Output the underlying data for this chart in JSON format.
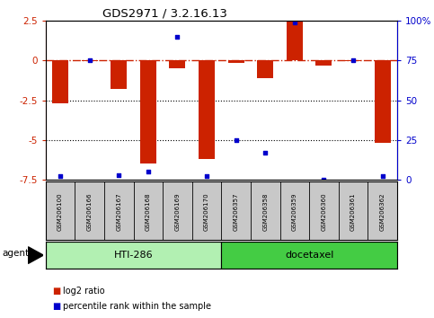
{
  "title": "GDS2971 / 3.2.16.13",
  "samples": [
    "GSM206100",
    "GSM206166",
    "GSM206167",
    "GSM206168",
    "GSM206169",
    "GSM206170",
    "GSM206357",
    "GSM206358",
    "GSM206359",
    "GSM206360",
    "GSM206361",
    "GSM206362"
  ],
  "log2_ratio": [
    -2.7,
    -0.05,
    -1.8,
    -6.5,
    -0.5,
    -6.2,
    -0.15,
    -1.1,
    2.45,
    -0.35,
    -0.02,
    -5.2
  ],
  "percentile_rank": [
    2,
    75,
    3,
    5,
    90,
    2,
    25,
    17,
    99,
    0,
    75,
    2
  ],
  "groups": [
    {
      "label": "HTI-286",
      "start": 0,
      "end": 5,
      "color": "#b2f0b2"
    },
    {
      "label": "docetaxel",
      "start": 6,
      "end": 11,
      "color": "#44cc44"
    }
  ],
  "ylim": [
    -7.5,
    2.5
  ],
  "yticks_left": [
    2.5,
    0,
    -2.5,
    -5,
    -7.5
  ],
  "yticks_right": [
    100,
    75,
    50,
    25,
    0
  ],
  "bar_color": "#CC2200",
  "dot_color": "#0000CC",
  "hline_color": "#CC2200",
  "hline_y": 0,
  "dotted_lines": [
    -2.5,
    -5.0
  ],
  "background_color": "#ffffff",
  "plot_bg": "#ffffff",
  "agent_label": "agent",
  "legend_bar_label": "log2 ratio",
  "legend_dot_label": "percentile rank within the sample"
}
